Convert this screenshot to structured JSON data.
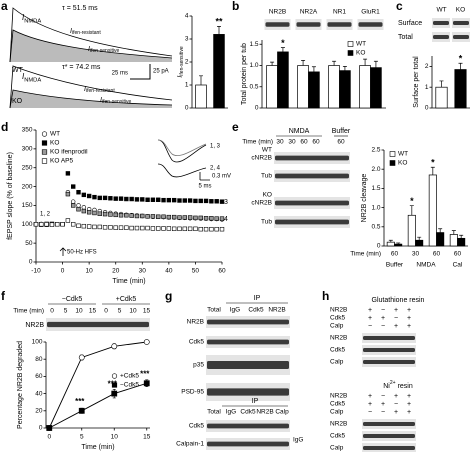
{
  "figure": {
    "letters": [
      "a",
      "b",
      "c",
      "d",
      "e",
      "f",
      "g",
      "h"
    ],
    "a": {
      "tau_wt": "τ = 51.5 ms",
      "tau_ko": "τ* = 74.2 ms",
      "nmda": {
        "symbol": "I",
        "subscript": "NMDA"
      },
      "resistant": {
        "symbol": "I",
        "subscript": "ifen-resistant"
      },
      "sensitive": {
        "symbol": "I",
        "subscript": "ifen-sensitive"
      },
      "wt": "WT",
      "ko": "KO",
      "scale_time": "25 ms",
      "scale_current": "25 pA"
    },
    "c": {
      "rows": [
        "Surface",
        "Total"
      ]
    },
    "d": {
      "inset": [
        "1, 3",
        "2, 4"
      ],
      "scale_v": "0.3 mV",
      "scale_t": "5 ms",
      "points": [
        "1, 2",
        "3",
        "4"
      ],
      "stim": "50-Hz HFS"
    },
    "e": {
      "conditions": [
        "NMDA",
        "Buffer"
      ],
      "time": "Time (min)",
      "times": [
        "30",
        "30",
        "60",
        "60",
        "60"
      ],
      "genotypes": [
        "WT",
        "KO"
      ],
      "rows": [
        "cNR2B",
        "Tub",
        "cNR2B",
        "Tub"
      ]
    },
    "f": {
      "conditions": [
        "−Cdk5",
        "+Cdk5"
      ],
      "time": "Time (min)",
      "times": [
        "0",
        "5",
        "10",
        "15",
        "0",
        "5",
        "10",
        "15"
      ],
      "row": "NR2B"
    },
    "g": {
      "ip": "IP",
      "lanes": [
        "Total",
        "IgG",
        "Cdk5",
        "NR2B"
      ],
      "rows": [
        "NR2B",
        "Cdk5",
        "p35",
        "PSD-95"
      ],
      "ip2": "IP",
      "lanes2": [
        "Total",
        "IgG",
        "Cdk5",
        "NR2B",
        "Calp"
      ],
      "rows2": [
        "Cdk5",
        "Calpain-1"
      ],
      "band": "IgG"
    },
    "h": {
      "pulldowns": [
        {
          "title": "Glutathione resin",
          "inputs": [
            {
              "name": "NR2B",
              "signs": [
                "+",
                "−",
                "+",
                "+"
              ]
            },
            {
              "name": "Cdk5",
              "signs": [
                "+",
                "+",
                "−",
                "+"
              ]
            },
            {
              "name": "Calp",
              "signs": [
                "−",
                "−",
                "+",
                "+"
              ]
            }
          ],
          "rows": [
            "NR2B",
            "Cdk5",
            "Calp"
          ]
        },
        {
          "title": {
            "text": "Ni",
            "sup": "2+",
            "rest": " resin"
          },
          "inputs": [
            {
              "name": "NR2B",
              "signs": [
                "+",
                "−",
                "+",
                "+"
              ]
            },
            {
              "name": "Cdk5",
              "signs": [
                "+",
                "+",
                "−",
                "+"
              ]
            },
            {
              "name": "Calp",
              "signs": [
                "−",
                "−",
                "+",
                "+"
              ]
            }
          ],
          "rows": [
            "NR2B",
            "Cdk5",
            "Calp"
          ]
        }
      ]
    }
  },
  "chart_data": [
    {
      "type": "bar",
      "categories": [
        null,
        null
      ],
      "values": [
        1.0,
        3.2
      ],
      "errors": [
        0.4,
        0.35
      ],
      "colors": [
        "#ffffff",
        "#000000"
      ],
      "ylim": [
        0,
        4
      ],
      "yticks": [
        0,
        1,
        2,
        3,
        4
      ],
      "ylabel": {
        "symbol": "I",
        "subscript": "ifen-sensitive"
      },
      "annotations": [
        {
          "text": "**",
          "index": 1
        }
      ]
    },
    {
      "type": "bar",
      "categories": [
        "NR2B",
        "NR2A",
        "NR1",
        "GluR1"
      ],
      "series": [
        {
          "name": "WT",
          "color": "#ffffff",
          "values": [
            1.0,
            1.0,
            1.0,
            1.0
          ],
          "errors": [
            0.08,
            0.12,
            0.1,
            0.15
          ]
        },
        {
          "name": "KO",
          "color": "#000000",
          "values": [
            1.32,
            0.85,
            0.88,
            0.95
          ],
          "errors": [
            0.1,
            0.12,
            0.1,
            0.15
          ]
        }
      ],
      "ylim": [
        0,
        1.6
      ],
      "yticks": [
        0,
        0.5,
        {
          "value": 1,
          "label": "1.0"
        },
        {
          "value": 1.5,
          "label": "1.5"
        }
      ],
      "ylabel": "Total protein per tub",
      "legend": "top-right",
      "annotations": [
        {
          "text": "*",
          "series": 1,
          "index": 0
        }
      ]
    },
    {
      "type": "bar",
      "categories": [
        "WT",
        "KO"
      ],
      "values": [
        1.0,
        1.85
      ],
      "errors": [
        0.3,
        0.3
      ],
      "colors": [
        "#ffffff",
        "#000000"
      ],
      "ylim": [
        0,
        2.5
      ],
      "yticks": [
        0,
        1,
        2
      ],
      "ylabel": "Surface per total",
      "annotations": [
        {
          "text": "*",
          "index": 1
        }
      ]
    },
    {
      "type": "line",
      "x": [
        -10,
        -8,
        -6,
        -4,
        -2,
        0,
        2,
        4,
        6,
        8,
        10,
        12,
        14,
        16,
        18,
        20,
        22,
        24,
        26,
        28,
        30,
        32,
        34,
        36,
        38,
        40,
        42,
        44,
        46,
        48,
        50,
        52,
        54,
        56,
        58,
        60
      ],
      "series": [
        {
          "name": "WT",
          "marker": "circle",
          "color": "#ffffff",
          "values": [
            100,
            101,
            99,
            100,
            100,
            100,
            185,
            160,
            150,
            145,
            140,
            138,
            135,
            132,
            130,
            128,
            127,
            125,
            124,
            123,
            122,
            121,
            120,
            120,
            119,
            118,
            118,
            117,
            117,
            116,
            116,
            115,
            115,
            114,
            114,
            113
          ]
        },
        {
          "name": "KO",
          "marker": "square",
          "color": "#000000",
          "values": [
            100,
            99,
            101,
            100,
            100,
            100,
            235,
            200,
            185,
            178,
            175,
            172,
            170,
            170,
            169,
            168,
            168,
            167,
            167,
            166,
            166,
            165,
            165,
            165,
            164,
            164,
            164,
            163,
            163,
            163,
            162,
            162,
            162,
            161,
            161,
            160
          ]
        },
        {
          "name": "KO ifenprodil",
          "marker": "square",
          "color": "#999999",
          "values": [
            100,
            100,
            99,
            101,
            100,
            100,
            180,
            150,
            140,
            135,
            132,
            130,
            128,
            127,
            126,
            125,
            124,
            124,
            123,
            122,
            122,
            121,
            121,
            120,
            120,
            119,
            119,
            118,
            118,
            118,
            117,
            117,
            116,
            116,
            115,
            115
          ]
        },
        {
          "name": "KO AP5",
          "marker": "square",
          "color": "#ffffff",
          "values": [
            100,
            100,
            100,
            99,
            100,
            100,
            110,
            100,
            96,
            95,
            94,
            93,
            93,
            92,
            92,
            91,
            91,
            91,
            90,
            90,
            90,
            90,
            89,
            89,
            89,
            89,
            88,
            88,
            88,
            88,
            88,
            87,
            87,
            87,
            87,
            87
          ]
        }
      ],
      "xlim": [
        -10,
        60
      ],
      "xticks": [
        -10,
        0,
        10,
        20,
        30,
        40,
        50,
        60
      ],
      "ylim": [
        0,
        350
      ],
      "yticks": [
        0,
        50,
        100,
        150,
        200,
        250,
        300,
        350
      ],
      "xlabel": "Time (min)",
      "ylabel": "fEPSP slope (% of baseline)",
      "legend": "top-left"
    },
    {
      "type": "bar",
      "groups": [
        {
          "name": "Buffer",
          "categories": [
            "60"
          ]
        },
        {
          "name": "NMDA",
          "categories": [
            "30",
            "60"
          ]
        },
        {
          "name": "Cal",
          "categories": [
            "60"
          ]
        }
      ],
      "xlabel": "Time (min)",
      "series": [
        {
          "name": "WT",
          "color": "#ffffff",
          "values": [
            0.1,
            0.8,
            1.85,
            0.3
          ],
          "errors": [
            0.05,
            0.25,
            0.2,
            0.1
          ]
        },
        {
          "name": "KO",
          "color": "#000000",
          "values": [
            0.05,
            0.15,
            0.35,
            0.2
          ],
          "errors": [
            0.03,
            0.08,
            0.1,
            0.08
          ]
        }
      ],
      "ylim": [
        0,
        2.5
      ],
      "yticks": [
        0,
        0.5,
        {
          "value": 1,
          "label": "1.0"
        },
        {
          "value": 1.5,
          "label": "1.5"
        },
        {
          "value": 2,
          "label": "2.0"
        },
        {
          "value": 2.5,
          "label": "2.5"
        }
      ],
      "ylabel": "NR2B cleavage",
      "legend": "top-left",
      "annotations": [
        {
          "text": "*",
          "series": 0,
          "index": 1
        },
        {
          "text": "*",
          "series": 0,
          "index": 2
        }
      ]
    },
    {
      "type": "line",
      "x": [
        0,
        5,
        10,
        15
      ],
      "connect": true,
      "series": [
        {
          "name": "+Cdk5",
          "marker": "circle",
          "color": "#ffffff",
          "values": [
            0,
            82,
            95,
            100
          ],
          "errors": [
            0,
            3,
            3,
            2
          ]
        },
        {
          "name": "−Cdk5",
          "marker": "square",
          "color": "#000000",
          "values": [
            0,
            20,
            40,
            52
          ],
          "errors": [
            0,
            3,
            5,
            4
          ]
        }
      ],
      "xlim": [
        -0.5,
        15.5
      ],
      "xticks": [
        0,
        5,
        10,
        15
      ],
      "ylim": [
        0,
        100
      ],
      "yticks": [
        0,
        20,
        40,
        60,
        80,
        100
      ],
      "xlabel": "Time (min)",
      "ylabel": "Percentage NR2B degraded",
      "legend": "center-right",
      "annotations": [
        {
          "text": "***",
          "series": 1,
          "x": 5
        },
        {
          "text": "***",
          "series": 1,
          "x": 10
        },
        {
          "text": "***",
          "series": 1,
          "x": 15
        }
      ]
    }
  ]
}
